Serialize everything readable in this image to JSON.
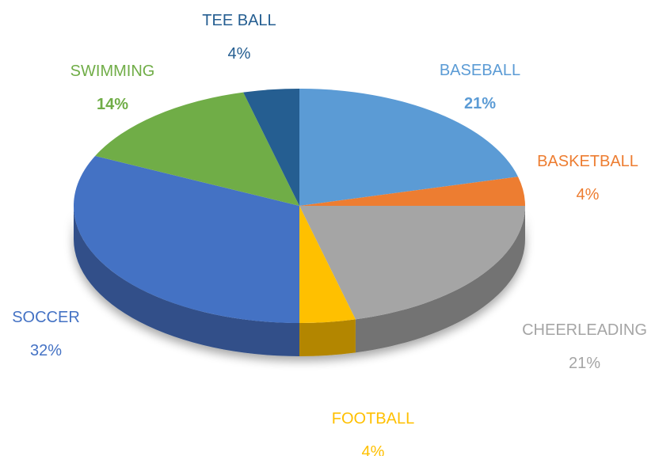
{
  "chart_data": {
    "type": "pie",
    "style": "3d",
    "legend": "none",
    "slices": [
      {
        "category": "BASEBALL",
        "value": 21,
        "value_label": "21%",
        "color": "#5B9BD5",
        "label_color": "#5B9BD5",
        "label_bold": true
      },
      {
        "category": "BASKETBALL",
        "value": 4,
        "value_label": "4%",
        "color": "#ED7D31",
        "label_color": "#ED7D31",
        "label_bold": false
      },
      {
        "category": "CHEERLEADING",
        "value": 21,
        "value_label": "21%",
        "color": "#A5A5A5",
        "label_color": "#A5A5A5",
        "label_bold": false
      },
      {
        "category": "FOOTBALL",
        "value": 4,
        "value_label": "4%",
        "color": "#FFC000",
        "label_color": "#FFC000",
        "label_bold": false
      },
      {
        "category": "SOCCER",
        "value": 32,
        "value_label": "32%",
        "color": "#4472C4",
        "label_color": "#4472C4",
        "label_bold": false
      },
      {
        "category": "SWIMMING",
        "value": 14,
        "value_label": "14%",
        "color": "#70AD47",
        "label_color": "#70AD47",
        "label_bold": true
      },
      {
        "category": "TEE BALL",
        "value": 4,
        "value_label": "4%",
        "color": "#255E91",
        "label_color": "#255E91",
        "label_bold": false
      }
    ]
  }
}
